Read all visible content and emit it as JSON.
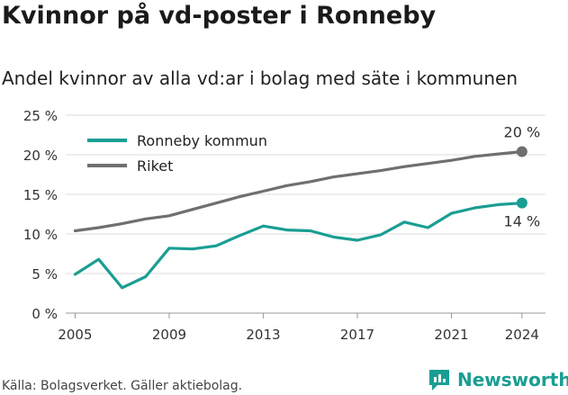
{
  "title": "Kvinnor på vd-poster i Ronneby",
  "subtitle": "Andel kvinnor av alla vd:ar i bolag med säte i kommunen",
  "source": "Källa: Bolagsverket. Gäller aktiebolag.",
  "brand": "Newsworthy",
  "chart_data": {
    "type": "line",
    "x": [
      2005,
      2006,
      2007,
      2008,
      2009,
      2010,
      2011,
      2012,
      2013,
      2014,
      2015,
      2016,
      2017,
      2018,
      2019,
      2020,
      2021,
      2022,
      2023,
      2024
    ],
    "x_ticks": [
      "2005",
      "2009",
      "2013",
      "2017",
      "2021",
      "2024"
    ],
    "y_ticks": [
      "0 %",
      "5 %",
      "10 %",
      "15 %",
      "20 %",
      "25 %"
    ],
    "ylim": [
      0,
      25
    ],
    "xlim": [
      2004.6,
      2025
    ],
    "grid": true,
    "legend": "top-left",
    "series": [
      {
        "name": "Ronneby kommun",
        "color": "#1a9e93",
        "values": [
          4.9,
          6.8,
          3.2,
          4.6,
          8.2,
          8.1,
          8.5,
          9.8,
          11.0,
          10.5,
          10.4,
          9.6,
          9.2,
          9.9,
          11.5,
          10.8,
          12.6,
          13.3,
          13.7,
          13.9
        ],
        "end_label": "14 %"
      },
      {
        "name": "Riket",
        "color": "#6f6f6f",
        "values": [
          10.4,
          10.8,
          11.3,
          11.9,
          12.3,
          13.1,
          13.9,
          14.7,
          15.4,
          16.1,
          16.6,
          17.2,
          17.6,
          18.0,
          18.5,
          18.9,
          19.3,
          19.8,
          20.1,
          20.4
        ],
        "end_label": "20 %"
      }
    ]
  }
}
